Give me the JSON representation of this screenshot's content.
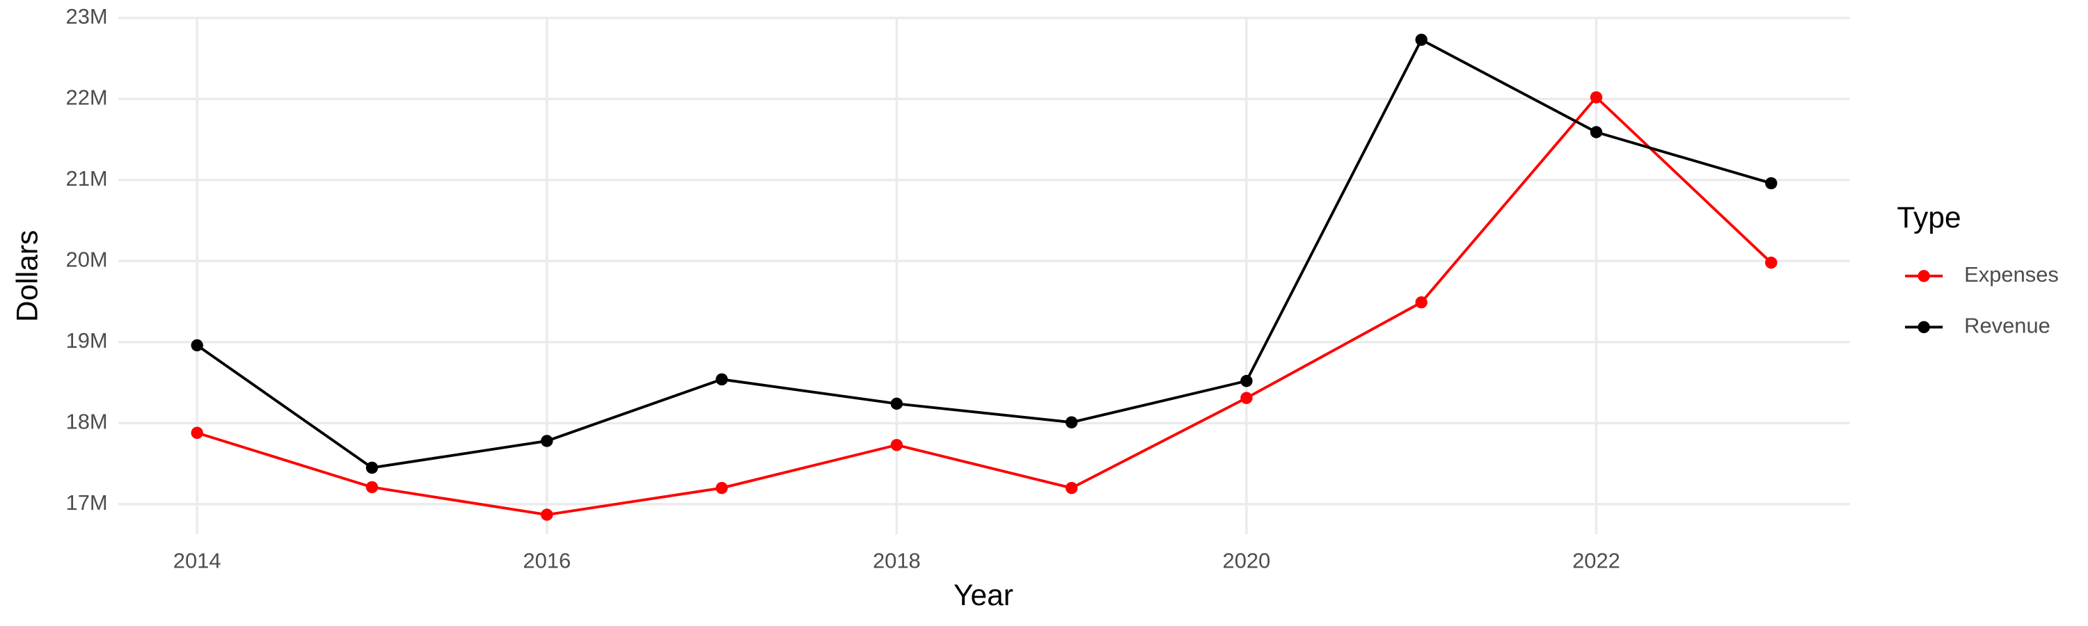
{
  "chart_data": {
    "type": "line",
    "x_label": "Year",
    "y_label": "Dollars",
    "x": [
      2014,
      2015,
      2016,
      2017,
      2018,
      2019,
      2020,
      2021,
      2022,
      2023
    ],
    "series": [
      {
        "name": "Expenses",
        "color": "#ff0000",
        "values": [
          17880000,
          17210000,
          16870000,
          17200000,
          17730000,
          17200000,
          18310000,
          19490000,
          22020000,
          19980000
        ]
      },
      {
        "name": "Revenue",
        "color": "#000000",
        "values": [
          18960000,
          17450000,
          17780000,
          18540000,
          18240000,
          18010000,
          18520000,
          22730000,
          21590000,
          20960000
        ]
      }
    ],
    "xlim": [
      2013.55,
      2023.45
    ],
    "xticks": [
      2014,
      2016,
      2018,
      2020,
      2022
    ],
    "ylim": [
      16630000,
      23000000
    ],
    "yticks": [
      {
        "value": 17000000,
        "label": "17M"
      },
      {
        "value": 18000000,
        "label": "18M"
      },
      {
        "value": 19000000,
        "label": "19M"
      },
      {
        "value": 20000000,
        "label": "20M"
      },
      {
        "value": 21000000,
        "label": "21M"
      },
      {
        "value": 22000000,
        "label": "22M"
      },
      {
        "value": 23000000,
        "label": "23M"
      }
    ],
    "grid": true,
    "legend_title": "Type",
    "legend_position": "right"
  }
}
